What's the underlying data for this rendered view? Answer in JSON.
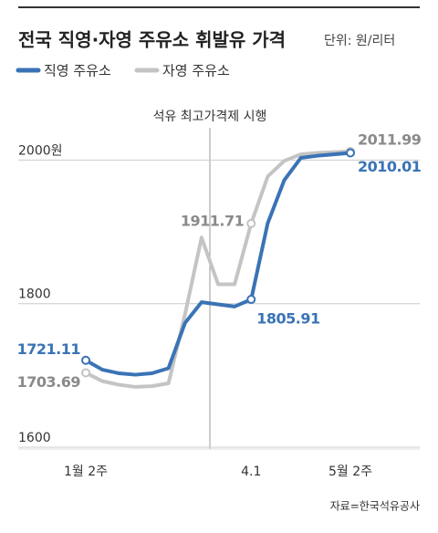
{
  "chart_data": {
    "type": "line",
    "title": "전국 직영·자영 주유소 휘발유 가격",
    "unit": "단위: 원/리터",
    "annotation": "석유 최고가격제 시행",
    "source": "자료=한국석유공사",
    "categories": [
      "1월 2주",
      null,
      null,
      null,
      null,
      null,
      null,
      null,
      null,
      null,
      "4.1",
      null,
      null,
      null,
      null,
      null,
      "5월 2주"
    ],
    "series": [
      {
        "name": "직영 주유소",
        "color": "#3a73b5",
        "values": [
          1721.11,
          1708,
          1703,
          1701,
          1703,
          1710,
          1773,
          1802,
          1799,
          1796,
          1805.91,
          1912,
          1972,
          2003,
          2006,
          2008,
          2010.01
        ]
      },
      {
        "name": "자영 주유소",
        "color": "#c4c4c4",
        "values": [
          1703.69,
          1692,
          1687,
          1684,
          1685,
          1689,
          1785,
          1892,
          1827,
          1827,
          1911.71,
          1977,
          1999,
          2008,
          2010,
          2011,
          2011.99
        ]
      }
    ],
    "ylim": [
      1600,
      2045
    ],
    "yticks": [
      {
        "value": 2000,
        "label": "2000원"
      },
      1800,
      1600
    ],
    "grid": true
  }
}
